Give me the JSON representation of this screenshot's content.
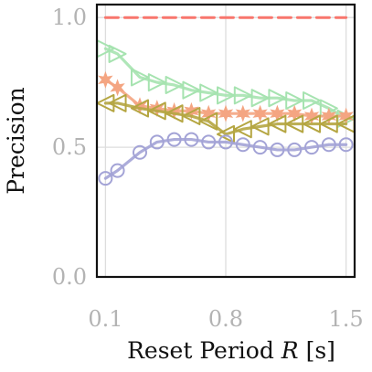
{
  "chart_data": {
    "type": "line",
    "xlabel": "Reset Period",
    "xlabel_var": "R",
    "xlabel_unit": "[s]",
    "ylabel": "Precision",
    "xlim": [
      0.05,
      1.55
    ],
    "ylim": [
      0.0,
      1.05
    ],
    "xticks": [
      0.1,
      0.8,
      1.5
    ],
    "xtick_labels": [
      "0.1",
      "0.8",
      "1.5"
    ],
    "yticks": [
      0.0,
      0.5,
      1.0
    ],
    "ytick_labels": [
      "0.0",
      "0.5",
      "1.0"
    ],
    "grid": true,
    "x": [
      0.1,
      0.17,
      0.3,
      0.4,
      0.5,
      0.6,
      0.7,
      0.8,
      0.9,
      1.0,
      1.1,
      1.2,
      1.3,
      1.4,
      1.5
    ],
    "series": [
      {
        "color": "#f8766d",
        "linestyle": "dashed",
        "marker": "none",
        "values": [
          1.0,
          1.0,
          1.0,
          1.0,
          1.0,
          1.0,
          1.0,
          1.0,
          1.0,
          1.0,
          1.0,
          1.0,
          1.0,
          1.0,
          1.0
        ]
      },
      {
        "color": "#a6e3b0",
        "linestyle": "solid",
        "marker": "triangle-right",
        "values": [
          0.88,
          0.86,
          0.77,
          0.75,
          0.74,
          0.72,
          0.71,
          0.7,
          0.7,
          0.69,
          0.69,
          0.68,
          0.68,
          0.65,
          0.61
        ]
      },
      {
        "color": "#f4a582",
        "linestyle": "solid",
        "marker": "star",
        "values": [
          0.76,
          0.73,
          0.66,
          0.65,
          0.64,
          0.64,
          0.63,
          0.63,
          0.63,
          0.63,
          0.63,
          0.63,
          0.62,
          0.62,
          0.62
        ]
      },
      {
        "color": "#b5a642",
        "linestyle": "solid",
        "marker": "triangle-left",
        "values": [
          0.67,
          0.67,
          0.65,
          0.64,
          0.63,
          0.62,
          0.6,
          0.55,
          0.57,
          0.58,
          0.59,
          0.59,
          0.59,
          0.59,
          0.59
        ]
      },
      {
        "color": "#a3a3d6",
        "linestyle": "solid",
        "marker": "circle",
        "values": [
          0.38,
          0.41,
          0.48,
          0.52,
          0.53,
          0.53,
          0.52,
          0.52,
          0.51,
          0.5,
          0.49,
          0.49,
          0.5,
          0.51,
          0.51
        ]
      }
    ]
  }
}
